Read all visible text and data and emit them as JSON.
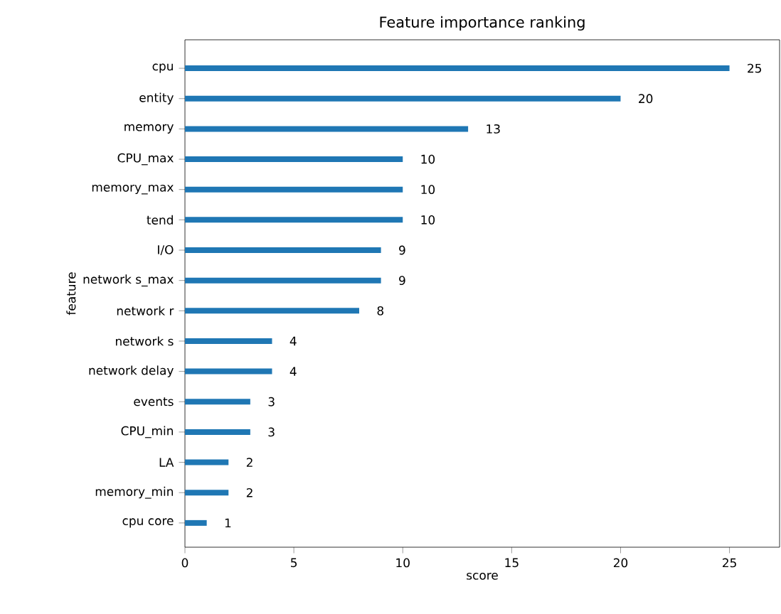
{
  "chart_data": {
    "type": "bar",
    "orientation": "horizontal",
    "title": "Feature importance ranking",
    "xlabel": "score",
    "ylabel": "feature",
    "categories": [
      "cpu",
      "entity",
      "memory",
      "CPU_max",
      "memory_max",
      "tend",
      "I/O",
      "network s_max",
      "network r",
      "network s",
      "network delay",
      "events",
      "CPU_min",
      "LA",
      "memory_min",
      "cpu core"
    ],
    "values": [
      25,
      20,
      13,
      10,
      10,
      10,
      9,
      9,
      8,
      4,
      4,
      3,
      3,
      2,
      2,
      1
    ],
    "color": "#1f77b4",
    "xlim": [
      0,
      27.3
    ],
    "xticks": [
      0,
      5,
      10,
      15,
      20,
      25
    ],
    "data_labels": true,
    "grid": false
  }
}
